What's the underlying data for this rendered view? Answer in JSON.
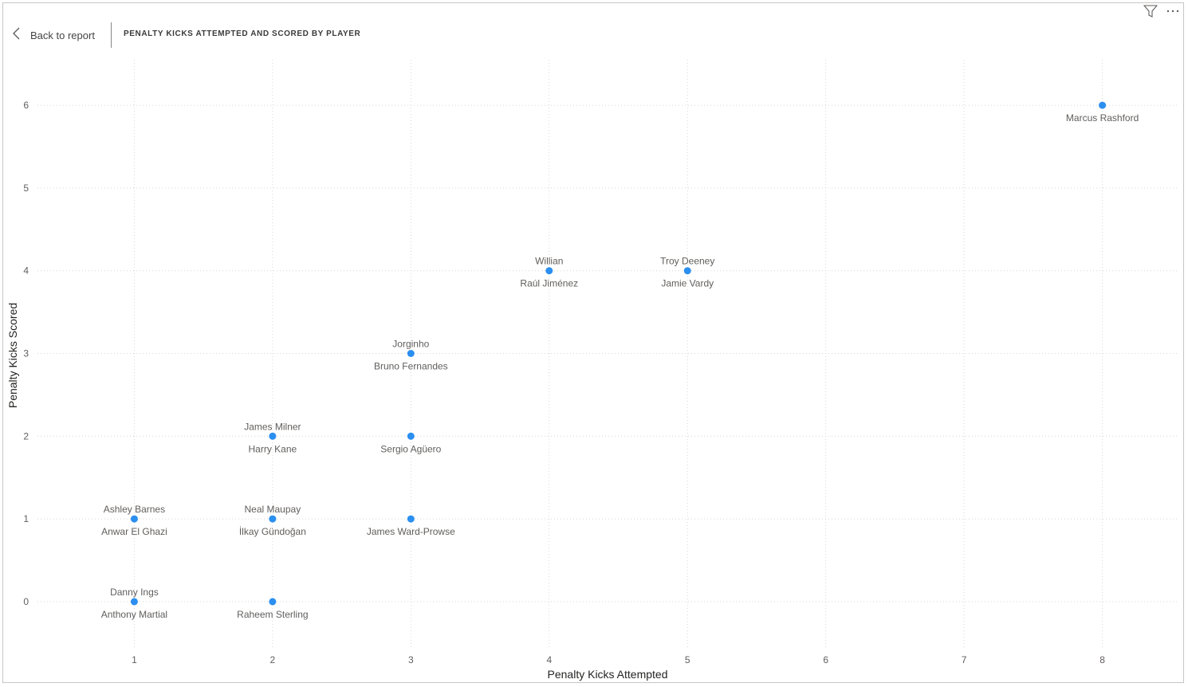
{
  "header": {
    "back_label": "Back to report",
    "title": "PENALTY KICKS ATTEMPTED AND SCORED BY PLAYER"
  },
  "toolbar": {
    "icons": [
      "filter-icon",
      "more-options-icon"
    ]
  },
  "colors": {
    "point": "#2b8ff0",
    "grid": "#d6d6d6"
  },
  "chart_data": {
    "type": "scatter",
    "title": "PENALTY KICKS ATTEMPTED AND SCORED BY PLAYER",
    "xlabel": "Penalty Kicks Attempted",
    "ylabel": "Penalty Kicks Scored",
    "xlim": [
      0.3,
      8.55
    ],
    "ylim": [
      -0.55,
      6.55
    ],
    "xticks": [
      1,
      2,
      3,
      4,
      5,
      6,
      7,
      8
    ],
    "yticks": [
      0,
      1,
      2,
      3,
      4,
      5,
      6
    ],
    "grid": true,
    "points": [
      {
        "x": 8,
        "y": 6,
        "labels_above": [],
        "labels_below": [
          "Marcus Rashford"
        ]
      },
      {
        "x": 4,
        "y": 4,
        "labels_above": [
          "Willian"
        ],
        "labels_below": [
          "Raúl Jiménez"
        ]
      },
      {
        "x": 5,
        "y": 4,
        "labels_above": [
          "Troy Deeney"
        ],
        "labels_below": [
          "Jamie Vardy"
        ]
      },
      {
        "x": 3,
        "y": 3,
        "labels_above": [
          "Jorginho"
        ],
        "labels_below": [
          "Bruno Fernandes"
        ]
      },
      {
        "x": 2,
        "y": 2,
        "labels_above": [
          "James Milner"
        ],
        "labels_below": [
          "Harry Kane"
        ]
      },
      {
        "x": 3,
        "y": 2,
        "labels_above": [],
        "labels_below": [
          "Sergio Agüero"
        ]
      },
      {
        "x": 1,
        "y": 1,
        "labels_above": [
          "Ashley Barnes"
        ],
        "labels_below": [
          "Anwar El Ghazi"
        ]
      },
      {
        "x": 2,
        "y": 1,
        "labels_above": [
          "Neal Maupay"
        ],
        "labels_below": [
          "İlkay Gündoğan"
        ]
      },
      {
        "x": 3,
        "y": 1,
        "labels_above": [],
        "labels_below": [
          "James Ward-Prowse"
        ]
      },
      {
        "x": 1,
        "y": 0,
        "labels_above": [
          "Danny Ings"
        ],
        "labels_below": [
          "Anthony Martial"
        ]
      },
      {
        "x": 2,
        "y": 0,
        "labels_above": [],
        "labels_below": [
          "Raheem Sterling"
        ]
      }
    ]
  }
}
